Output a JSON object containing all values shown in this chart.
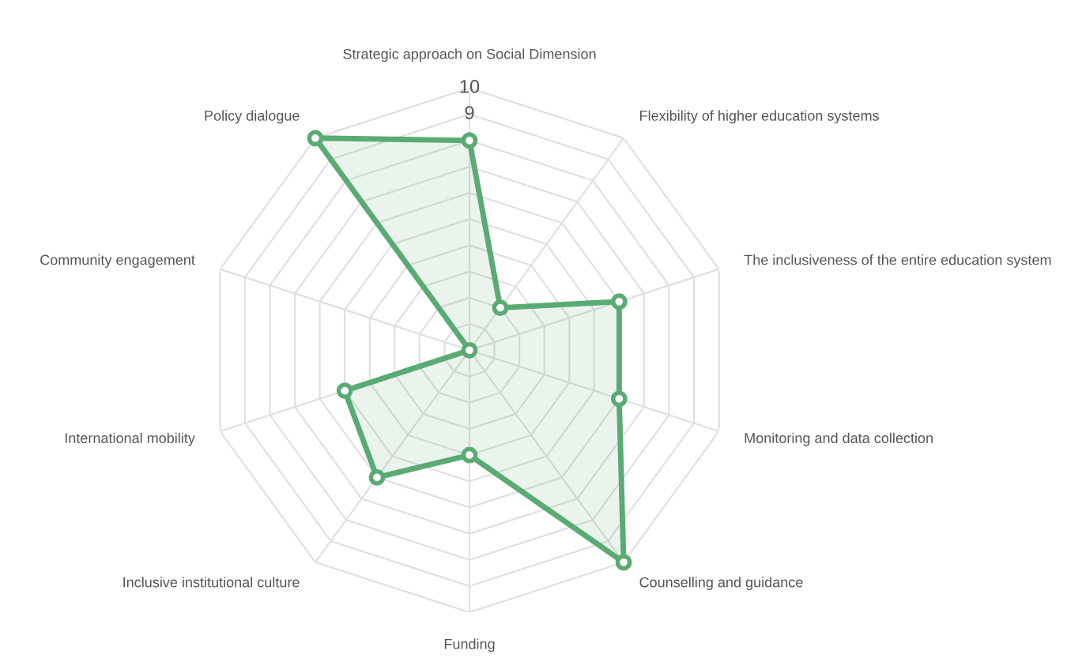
{
  "chart_data": {
    "type": "radar",
    "categories": [
      "Strategic approach on Social Dimension",
      "Flexibility of higher education systems",
      "The inclusiveness of the entire education system",
      "Monitoring and data collection",
      "Counselling and guidance",
      "Funding",
      "Inclusive institutional culture",
      "International mobility",
      "Community engagement",
      "Policy dialogue"
    ],
    "series": [
      {
        "color": "#5aab73",
        "values": [
          8,
          2,
          6,
          6,
          10,
          4,
          6,
          5,
          0,
          10
        ]
      }
    ],
    "ylim": [
      0,
      10
    ],
    "yticks": [
      8,
      9,
      10
    ],
    "grid": true,
    "marker": "circle",
    "line_style": "solid"
  }
}
